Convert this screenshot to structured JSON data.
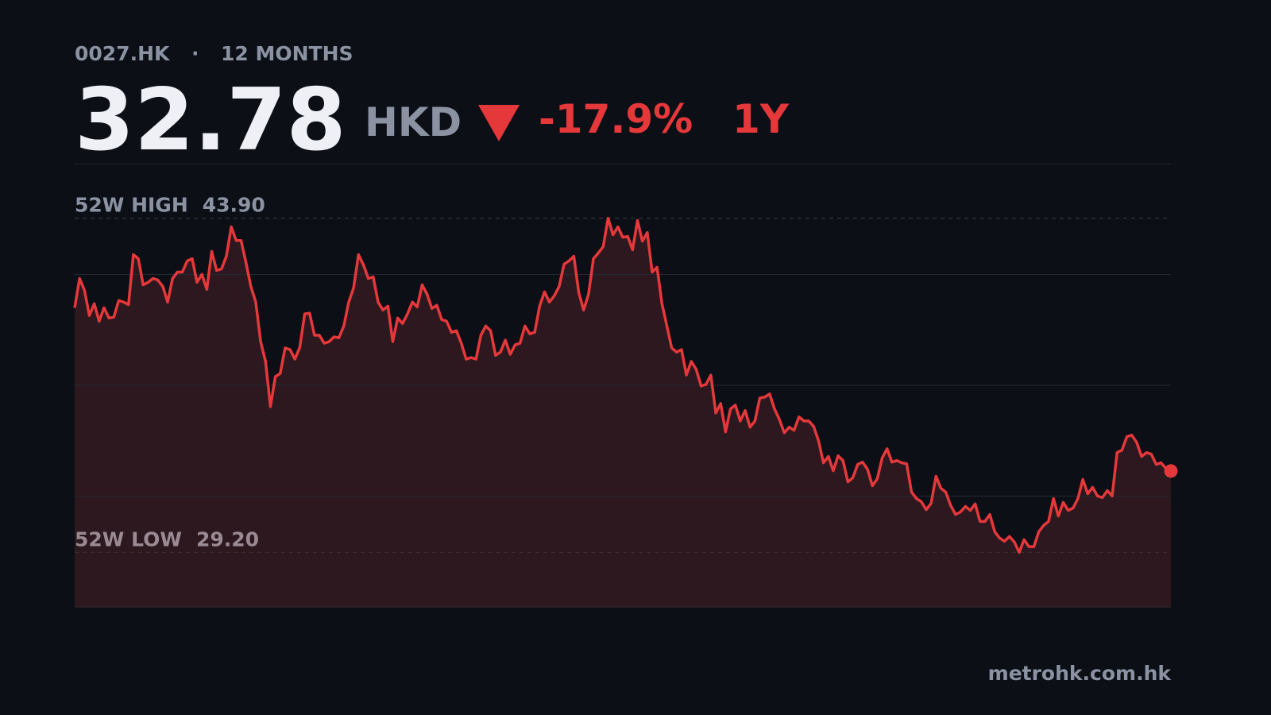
{
  "header": {
    "ticker": "0027.HK",
    "separator": "·",
    "period": "12 MONTHS",
    "price": "32.78",
    "currency": "HKD",
    "change": "-17.9%",
    "range": "1Y"
  },
  "chart_data": {
    "type": "area",
    "color": "#e5383b",
    "fill": "#2c181e",
    "ylim": [
      26.8,
      46.3
    ],
    "high_label": "52W HIGH",
    "high": {
      "value": 43.9,
      "label": "43.90"
    },
    "low_label": "52W LOW",
    "low": {
      "value": 29.2,
      "label": "29.20"
    },
    "values": [
      39.96,
      41.25,
      40.73,
      39.62,
      40.14,
      39.37,
      39.96,
      39.51,
      39.55,
      40.28,
      40.21,
      40.1,
      42.3,
      42.12,
      40.97,
      41.08,
      41.25,
      41.18,
      40.9,
      40.21,
      41.25,
      41.53,
      41.53,
      42.02,
      42.12,
      41.08,
      41.43,
      40.77,
      42.44,
      41.6,
      41.67,
      42.23,
      43.52,
      42.92,
      42.92,
      41.95,
      40.9,
      40.21,
      38.47,
      37.6,
      35.61,
      36.93,
      37.07,
      38.19,
      38.12,
      37.7,
      38.22,
      39.69,
      39.72,
      38.75,
      38.75,
      38.4,
      38.47,
      38.68,
      38.64,
      39.16,
      40.21,
      40.84,
      42.3,
      41.85,
      41.25,
      41.32,
      40.21,
      39.86,
      40.03,
      38.47,
      39.51,
      39.27,
      39.69,
      40.21,
      40.0,
      40.97,
      40.56,
      39.93,
      40.07,
      39.44,
      39.37,
      38.88,
      38.95,
      38.4,
      37.7,
      37.77,
      37.7,
      38.75,
      39.16,
      38.95,
      37.87,
      38.01,
      38.54,
      37.91,
      38.33,
      38.4,
      39.16,
      38.81,
      38.88,
      40.03,
      40.66,
      40.21,
      40.49,
      40.9,
      41.88,
      42.02,
      42.23,
      40.63,
      39.86,
      40.56,
      42.12,
      42.37,
      42.65,
      43.9,
      43.17,
      43.52,
      43.06,
      43.1,
      42.51,
      43.8,
      42.89,
      43.27,
      41.53,
      41.74,
      40.14,
      39.16,
      38.19,
      38.01,
      38.12,
      37.0,
      37.6,
      37.25,
      36.52,
      36.59,
      37.0,
      35.33,
      35.75,
      34.5,
      35.51,
      35.68,
      34.98,
      35.44,
      34.71,
      34.98,
      35.99,
      36.03,
      36.17,
      35.51,
      35.05,
      34.46,
      34.71,
      34.57,
      35.16,
      34.98,
      34.98,
      34.74,
      34.11,
      33.14,
      33.42,
      32.79,
      33.45,
      33.24,
      32.3,
      32.48,
      33.07,
      33.17,
      32.86,
      32.13,
      32.44,
      33.35,
      33.76,
      33.17,
      33.24,
      33.14,
      33.1,
      31.85,
      31.57,
      31.43,
      31.08,
      31.36,
      32.55,
      32.02,
      31.85,
      31.26,
      30.87,
      30.98,
      31.22,
      31.05,
      31.33,
      30.56,
      30.56,
      30.87,
      30.11,
      29.83,
      29.69,
      29.9,
      29.66,
      29.2,
      29.76,
      29.45,
      29.45,
      30.11,
      30.39,
      30.56,
      31.57,
      30.8,
      31.4,
      31.05,
      31.15,
      31.57,
      32.41,
      31.78,
      32.06,
      31.68,
      31.61,
      31.92,
      31.68,
      33.59,
      33.7,
      34.29,
      34.36,
      34.04,
      33.42,
      33.59,
      33.52,
      33.07,
      33.14,
      32.89,
      32.78
    ]
  }
}
